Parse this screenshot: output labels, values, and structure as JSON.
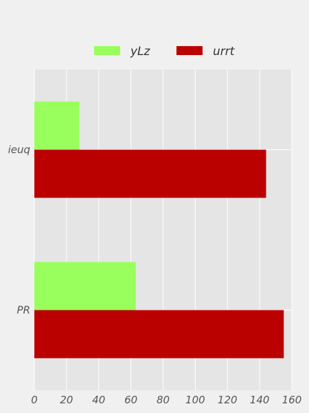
{
  "chart_data": {
    "type": "bar",
    "orientation": "horizontal",
    "categories": [
      "ieuq",
      "PR"
    ],
    "series": [
      {
        "name": "yLz",
        "values": [
          28,
          63
        ],
        "color": "#99ff5c"
      },
      {
        "name": "urrt",
        "values": [
          144,
          155
        ],
        "color": "#bb0000"
      }
    ],
    "xlim": [
      0,
      160
    ],
    "xticks": [
      0,
      20,
      40,
      60,
      80,
      100,
      120,
      140,
      160
    ],
    "title": "",
    "xlabel": "",
    "ylabel": "",
    "grid": true,
    "legend_position": "top-center",
    "background_color": "#e5e5e5",
    "grid_color": "#ffffff"
  }
}
